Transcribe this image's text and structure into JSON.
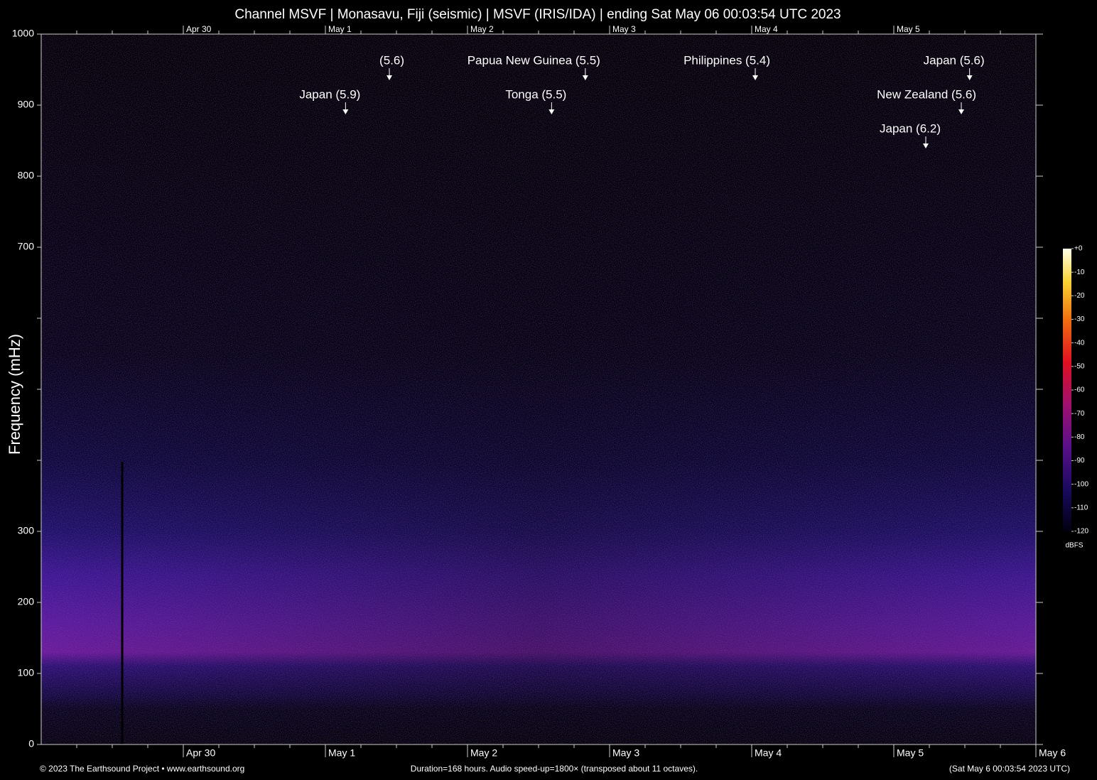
{
  "chart_data": {
    "type": "spectrogram",
    "title": "Channel MSVF | Monasavu, Fiji (seismic) | MSVF (IRIS/IDA) | ending Sat May 06 00:03:54 UTC 2023",
    "y_label": "Frequency (mHz)",
    "ylim": [
      0,
      1000
    ],
    "yticks": [
      0,
      100,
      200,
      300,
      700,
      800,
      900,
      1000
    ],
    "yminor": [
      400,
      500,
      600
    ],
    "xlim": [
      0,
      168
    ],
    "xticks": [
      {
        "value": 24,
        "label": "Apr 30"
      },
      {
        "value": 48,
        "label": "May 1"
      },
      {
        "value": 72,
        "label": "May 2"
      },
      {
        "value": 96,
        "label": "May 3"
      },
      {
        "value": 120,
        "label": "May 4"
      },
      {
        "value": 144,
        "label": "May 5"
      },
      {
        "value": 168,
        "label": "May 6"
      }
    ],
    "annotations": [
      {
        "text": "(5.6)",
        "x": 58.8,
        "y": 962
      },
      {
        "text": "Japan (5.9)",
        "x": 51.4,
        "y": 914
      },
      {
        "text": "Papua New Guinea (5.5)",
        "x": 91.9,
        "y": 962
      },
      {
        "text": "Tonga (5.5)",
        "x": 86.2,
        "y": 914
      },
      {
        "text": "Philippines (5.4)",
        "x": 120.6,
        "y": 962
      },
      {
        "text": "Japan (5.6)",
        "x": 156.8,
        "y": 962
      },
      {
        "text": "New Zealand (5.6)",
        "x": 155.4,
        "y": 914
      },
      {
        "text": "Japan (6.2)",
        "x": 149.4,
        "y": 866
      }
    ],
    "colorbar": {
      "label": "dBFS",
      "lim": [
        -120,
        0
      ],
      "ticks": [
        {
          "value": 0,
          "label": "+0"
        },
        -10,
        -20,
        -30,
        -40,
        -50,
        -60,
        -70,
        -80,
        -90,
        -100,
        -110,
        -120
      ]
    },
    "footer": {
      "left": "© 2023 The Earthsound Project • www.earthsound.org",
      "center": "Duration=168 hours. Audio speed-up=1800× (transposed about 11 octaves).",
      "right": "(Sat May  6 00:03:54 2023 UTC)"
    }
  }
}
